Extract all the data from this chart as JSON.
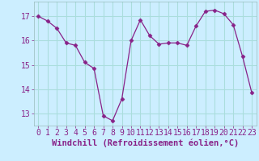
{
  "x": [
    0,
    1,
    2,
    3,
    4,
    5,
    6,
    7,
    8,
    9,
    10,
    11,
    12,
    13,
    14,
    15,
    16,
    17,
    18,
    19,
    20,
    21,
    22,
    23
  ],
  "y": [
    17.0,
    16.8,
    16.5,
    15.9,
    15.8,
    15.1,
    14.85,
    12.9,
    12.7,
    13.6,
    16.0,
    16.85,
    16.2,
    15.85,
    15.9,
    15.9,
    15.8,
    16.6,
    17.2,
    17.25,
    17.1,
    16.65,
    15.35,
    13.85
  ],
  "line_color": "#882288",
  "marker": "D",
  "marker_size": 2.5,
  "bg_color": "#cceeff",
  "grid_color": "#aadddd",
  "text_color": "#882288",
  "xlabel": "Windchill (Refroidissement éolien,°C)",
  "xlabel_fontsize": 7.5,
  "tick_fontsize": 7,
  "ylim": [
    12.5,
    17.6
  ],
  "yticks": [
    13,
    14,
    15,
    16,
    17
  ],
  "xticks": [
    0,
    1,
    2,
    3,
    4,
    5,
    6,
    7,
    8,
    9,
    10,
    11,
    12,
    13,
    14,
    15,
    16,
    17,
    18,
    19,
    20,
    21,
    22,
    23
  ],
  "xlim": [
    -0.5,
    23.5
  ]
}
